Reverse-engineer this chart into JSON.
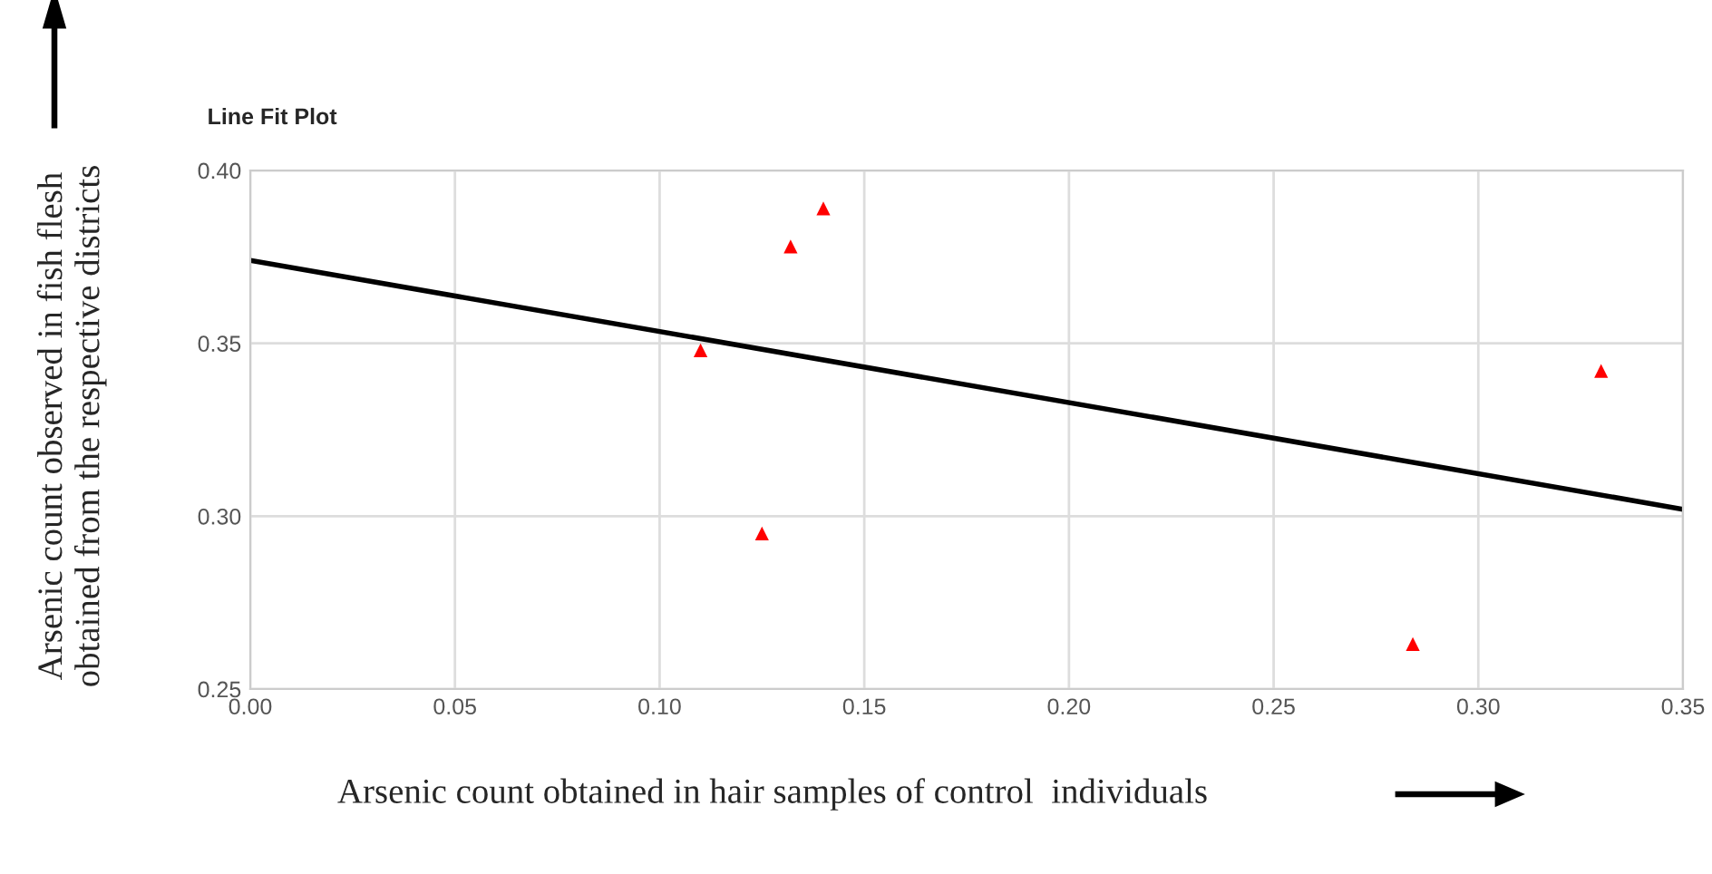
{
  "chart_data": {
    "type": "scatter",
    "title": "Line Fit Plot",
    "xlabel": "Arsenic count obtained in hair samples of control  individuals",
    "ylabel": "Arsenic count observed in fish flesh\nobtained from the respective districts",
    "series": [
      {
        "color": "#ff0000",
        "marker": "triangle",
        "x": [
          0.11,
          0.125,
          0.132,
          0.14,
          0.284,
          0.33
        ],
        "values": [
          0.348,
          0.295,
          0.378,
          0.389,
          0.263,
          0.342
        ]
      },
      {
        "type": "line",
        "color": "#000000",
        "marker": "none",
        "x": [
          0.0,
          0.35
        ],
        "values": [
          0.374,
          0.302
        ]
      }
    ],
    "xlim": [
      0,
      0.35
    ],
    "xticks": [
      {
        "value": 0,
        "label": "0.00"
      },
      0.05,
      {
        "value": 0.1,
        "label": "0.10"
      },
      0.15,
      {
        "value": 0.2,
        "label": "0.20"
      },
      0.25,
      {
        "value": 0.3,
        "label": "0.30"
      },
      0.35
    ],
    "ylim": [
      0.25,
      0.4
    ],
    "yticks": [
      0.25,
      {
        "value": 0.3,
        "label": "0.30"
      },
      0.35,
      {
        "value": 0.4,
        "label": "0.40"
      }
    ],
    "grid": true
  }
}
